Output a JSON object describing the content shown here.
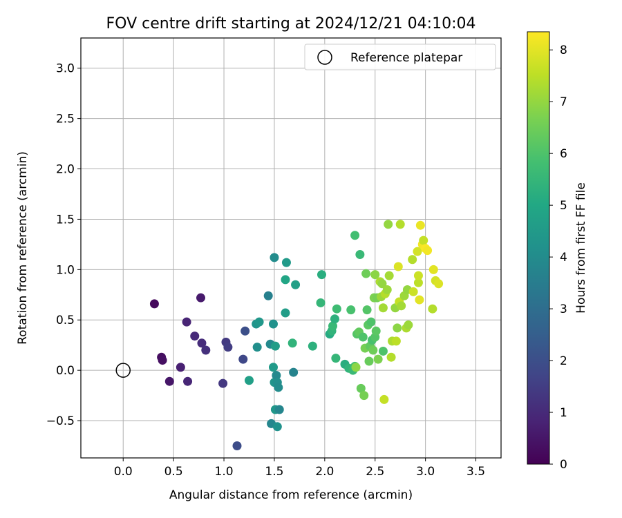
{
  "chart_data": {
    "type": "scatter",
    "title": "FOV centre drift starting at 2024/12/21 04:10:04",
    "xlabel": "Angular distance from reference (arcmin)",
    "ylabel": "Rotation from reference (arcmin)",
    "xlim": [
      -0.42,
      3.75
    ],
    "ylim": [
      -0.87,
      3.3
    ],
    "xticks": [
      0.0,
      0.5,
      1.0,
      1.5,
      2.0,
      2.5,
      3.0,
      3.5
    ],
    "yticks": [
      -0.5,
      0.0,
      0.5,
      1.0,
      1.5,
      2.0,
      2.5,
      3.0
    ],
    "grid": true,
    "legend": {
      "position": "top-right",
      "entries": [
        "Reference platepar"
      ]
    },
    "reference": {
      "label": "Reference platepar",
      "x": 0.0,
      "y": 0.0
    },
    "colorbar": {
      "label": "Hours from first FF file",
      "colormap": "viridis",
      "range": [
        0,
        8.35
      ],
      "ticks": [
        0,
        1,
        2,
        3,
        4,
        5,
        6,
        7,
        8
      ]
    },
    "points": [
      {
        "x": 0.31,
        "y": 0.66,
        "h": 0.2
      },
      {
        "x": 0.38,
        "y": 0.13,
        "h": 0.3
      },
      {
        "x": 0.39,
        "y": 0.1,
        "h": 0.35
      },
      {
        "x": 0.46,
        "y": -0.11,
        "h": 0.5
      },
      {
        "x": 0.57,
        "y": 0.03,
        "h": 0.75
      },
      {
        "x": 0.63,
        "y": 0.48,
        "h": 0.85
      },
      {
        "x": 0.64,
        "y": -0.11,
        "h": 0.9
      },
      {
        "x": 0.71,
        "y": 0.34,
        "h": 1.0
      },
      {
        "x": 0.77,
        "y": 0.72,
        "h": 0.6
      },
      {
        "x": 0.78,
        "y": 0.27,
        "h": 1.05
      },
      {
        "x": 0.82,
        "y": 0.2,
        "h": 1.15
      },
      {
        "x": 0.99,
        "y": -0.13,
        "h": 1.35
      },
      {
        "x": 1.02,
        "y": 0.28,
        "h": 1.4
      },
      {
        "x": 1.04,
        "y": 0.23,
        "h": 1.5
      },
      {
        "x": 1.13,
        "y": -0.75,
        "h": 1.95
      },
      {
        "x": 1.19,
        "y": 0.11,
        "h": 1.8
      },
      {
        "x": 1.21,
        "y": 0.39,
        "h": 2.0
      },
      {
        "x": 1.25,
        "y": -0.1,
        "h": 4.7
      },
      {
        "x": 1.32,
        "y": 0.46,
        "h": 4.3
      },
      {
        "x": 1.33,
        "y": 0.23,
        "h": 4.1
      },
      {
        "x": 1.35,
        "y": 0.48,
        "h": 4.4
      },
      {
        "x": 1.44,
        "y": 0.74,
        "h": 3.6
      },
      {
        "x": 1.46,
        "y": 0.26,
        "h": 3.9
      },
      {
        "x": 1.47,
        "y": -0.53,
        "h": 3.8
      },
      {
        "x": 1.49,
        "y": 0.46,
        "h": 4.2
      },
      {
        "x": 1.49,
        "y": 0.03,
        "h": 4.5
      },
      {
        "x": 1.5,
        "y": 1.12,
        "h": 4.0
      },
      {
        "x": 1.5,
        "y": -0.12,
        "h": 4.3
      },
      {
        "x": 1.51,
        "y": 0.24,
        "h": 4.6
      },
      {
        "x": 1.51,
        "y": -0.39,
        "h": 4.4
      },
      {
        "x": 1.52,
        "y": -0.05,
        "h": 3.9
      },
      {
        "x": 1.53,
        "y": -0.12,
        "h": 4.1
      },
      {
        "x": 1.53,
        "y": -0.56,
        "h": 4.2
      },
      {
        "x": 1.54,
        "y": -0.17,
        "h": 4.0
      },
      {
        "x": 1.55,
        "y": -0.39,
        "h": 3.8
      },
      {
        "x": 1.61,
        "y": 0.57,
        "h": 4.6
      },
      {
        "x": 1.61,
        "y": 0.9,
        "h": 4.9
      },
      {
        "x": 1.62,
        "y": 1.07,
        "h": 4.5
      },
      {
        "x": 1.68,
        "y": 0.27,
        "h": 5.4
      },
      {
        "x": 1.69,
        "y": -0.02,
        "h": 3.7
      },
      {
        "x": 1.71,
        "y": 0.85,
        "h": 4.7
      },
      {
        "x": 1.88,
        "y": 0.24,
        "h": 5.3
      },
      {
        "x": 1.96,
        "y": 0.67,
        "h": 5.5
      },
      {
        "x": 1.97,
        "y": 0.95,
        "h": 5.2
      },
      {
        "x": 2.05,
        "y": 0.36,
        "h": 5.1
      },
      {
        "x": 2.07,
        "y": 0.39,
        "h": 5.4
      },
      {
        "x": 2.08,
        "y": 0.44,
        "h": 5.6
      },
      {
        "x": 2.1,
        "y": 0.51,
        "h": 5.3
      },
      {
        "x": 2.11,
        "y": 0.12,
        "h": 5.5
      },
      {
        "x": 2.12,
        "y": 0.61,
        "h": 5.7
      },
      {
        "x": 2.2,
        "y": 0.06,
        "h": 5.2
      },
      {
        "x": 2.24,
        "y": 0.02,
        "h": 5.4
      },
      {
        "x": 2.26,
        "y": 0.6,
        "h": 5.9
      },
      {
        "x": 2.28,
        "y": 0.0,
        "h": 5.6
      },
      {
        "x": 2.3,
        "y": 0.04,
        "h": 5.8
      },
      {
        "x": 2.3,
        "y": 1.34,
        "h": 5.8
      },
      {
        "x": 2.31,
        "y": 0.03,
        "h": 6.9
      },
      {
        "x": 2.32,
        "y": 0.36,
        "h": 6.1
      },
      {
        "x": 2.34,
        "y": 0.38,
        "h": 6.3
      },
      {
        "x": 2.35,
        "y": 1.15,
        "h": 5.6
      },
      {
        "x": 2.36,
        "y": -0.18,
        "h": 6.4
      },
      {
        "x": 2.38,
        "y": 0.33,
        "h": 6.0
      },
      {
        "x": 2.39,
        "y": -0.25,
        "h": 6.6
      },
      {
        "x": 2.4,
        "y": 0.22,
        "h": 6.6
      },
      {
        "x": 2.41,
        "y": 0.96,
        "h": 6.5
      },
      {
        "x": 2.42,
        "y": 0.6,
        "h": 6.1
      },
      {
        "x": 2.43,
        "y": 0.45,
        "h": 6.2
      },
      {
        "x": 2.44,
        "y": 0.09,
        "h": 6.4
      },
      {
        "x": 2.45,
        "y": 0.24,
        "h": 6.3
      },
      {
        "x": 2.46,
        "y": 0.48,
        "h": 6.0
      },
      {
        "x": 2.47,
        "y": 0.3,
        "h": 5.9
      },
      {
        "x": 2.48,
        "y": 0.2,
        "h": 6.5
      },
      {
        "x": 2.49,
        "y": 0.72,
        "h": 6.7
      },
      {
        "x": 2.5,
        "y": 0.95,
        "h": 6.9
      },
      {
        "x": 2.5,
        "y": 0.33,
        "h": 6.1
      },
      {
        "x": 2.51,
        "y": 0.39,
        "h": 6.2
      },
      {
        "x": 2.52,
        "y": 0.72,
        "h": 6.6
      },
      {
        "x": 2.53,
        "y": 0.11,
        "h": 6.7
      },
      {
        "x": 2.55,
        "y": 0.88,
        "h": 7.3
      },
      {
        "x": 2.56,
        "y": 0.73,
        "h": 7.1
      },
      {
        "x": 2.57,
        "y": 0.86,
        "h": 7.0
      },
      {
        "x": 2.58,
        "y": 0.62,
        "h": 7.2
      },
      {
        "x": 2.58,
        "y": 0.19,
        "h": 6.0
      },
      {
        "x": 2.59,
        "y": -0.29,
        "h": 7.6
      },
      {
        "x": 2.6,
        "y": 0.76,
        "h": 7.4
      },
      {
        "x": 2.62,
        "y": 0.8,
        "h": 7.1
      },
      {
        "x": 2.63,
        "y": 1.45,
        "h": 7.0
      },
      {
        "x": 2.64,
        "y": 0.94,
        "h": 7.2
      },
      {
        "x": 2.66,
        "y": 0.13,
        "h": 7.4
      },
      {
        "x": 2.67,
        "y": 0.29,
        "h": 7.3
      },
      {
        "x": 2.7,
        "y": 0.62,
        "h": 7.0
      },
      {
        "x": 2.71,
        "y": 0.29,
        "h": 7.5
      },
      {
        "x": 2.72,
        "y": 0.42,
        "h": 6.9
      },
      {
        "x": 2.73,
        "y": 1.03,
        "h": 7.9
      },
      {
        "x": 2.74,
        "y": 0.68,
        "h": 7.6
      },
      {
        "x": 2.75,
        "y": 1.45,
        "h": 7.4
      },
      {
        "x": 2.76,
        "y": 0.64,
        "h": 7.2
      },
      {
        "x": 2.79,
        "y": 0.74,
        "h": 7.1
      },
      {
        "x": 2.81,
        "y": 0.42,
        "h": 7.3
      },
      {
        "x": 2.82,
        "y": 0.8,
        "h": 7.0
      },
      {
        "x": 2.83,
        "y": 0.45,
        "h": 7.1
      },
      {
        "x": 2.87,
        "y": 1.1,
        "h": 7.4
      },
      {
        "x": 2.88,
        "y": 0.78,
        "h": 7.7
      },
      {
        "x": 2.92,
        "y": 1.18,
        "h": 7.8
      },
      {
        "x": 2.93,
        "y": 0.87,
        "h": 7.5
      },
      {
        "x": 2.93,
        "y": 0.94,
        "h": 7.7
      },
      {
        "x": 2.94,
        "y": 0.7,
        "h": 8.0
      },
      {
        "x": 2.95,
        "y": 1.44,
        "h": 8.1
      },
      {
        "x": 2.97,
        "y": 1.25,
        "h": 8.2
      },
      {
        "x": 2.98,
        "y": 1.29,
        "h": 7.6
      },
      {
        "x": 3.0,
        "y": 1.21,
        "h": 8.3
      },
      {
        "x": 3.02,
        "y": 1.19,
        "h": 8.2
      },
      {
        "x": 3.07,
        "y": 0.61,
        "h": 7.4
      },
      {
        "x": 3.08,
        "y": 1.0,
        "h": 8.0
      },
      {
        "x": 3.1,
        "y": 0.89,
        "h": 7.8
      },
      {
        "x": 3.13,
        "y": 0.86,
        "h": 7.9
      }
    ]
  }
}
